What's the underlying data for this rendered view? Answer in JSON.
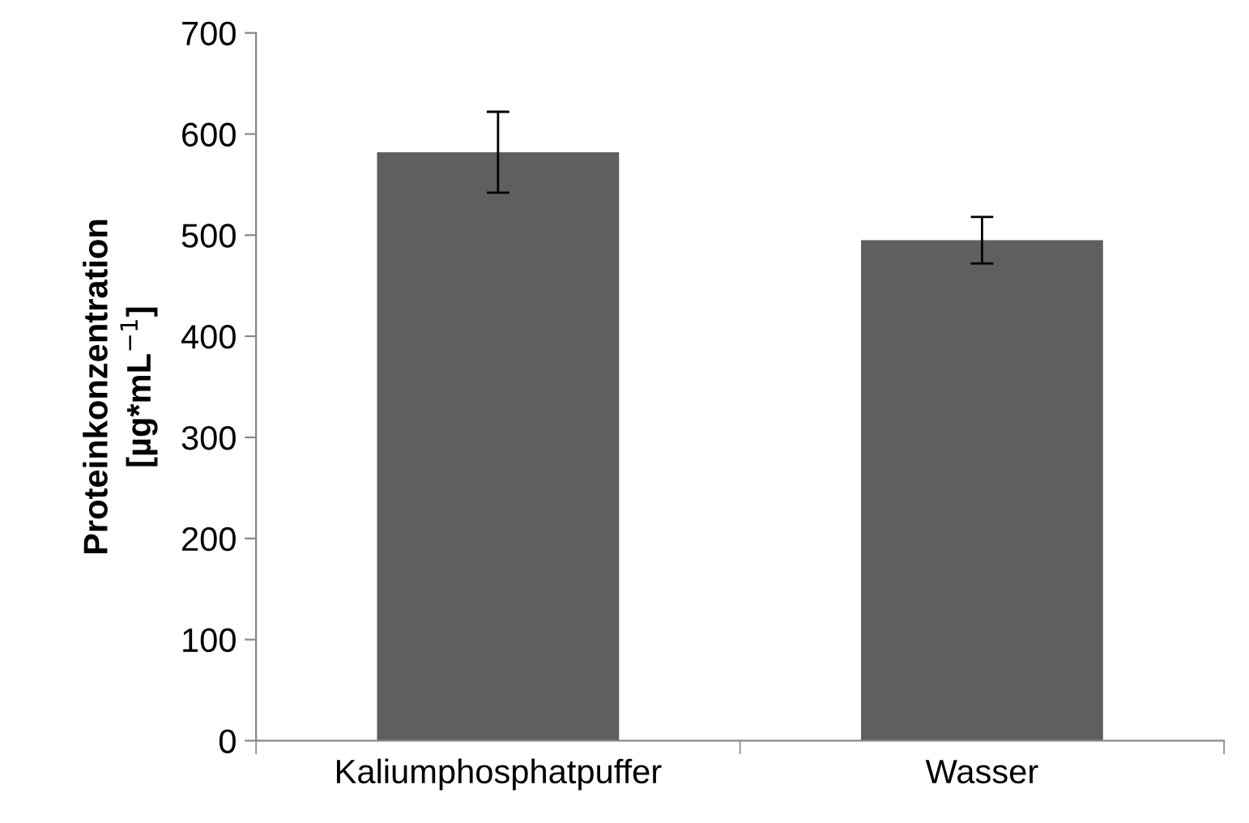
{
  "chart_data": {
    "type": "bar",
    "ylabel": "Proteinkonzentration\n[µg*mL$^{−1}$]",
    "categories": [
      "Kaliumphosphatpuffer",
      "Wasser"
    ],
    "values": [
      582,
      495
    ],
    "errors": [
      40,
      23
    ],
    "color": "#5f5f5f",
    "ylim": [
      0,
      700
    ],
    "yticks": [
      0,
      100,
      200,
      300,
      400,
      500,
      600,
      700
    ],
    "grid": false,
    "legend": false
  }
}
